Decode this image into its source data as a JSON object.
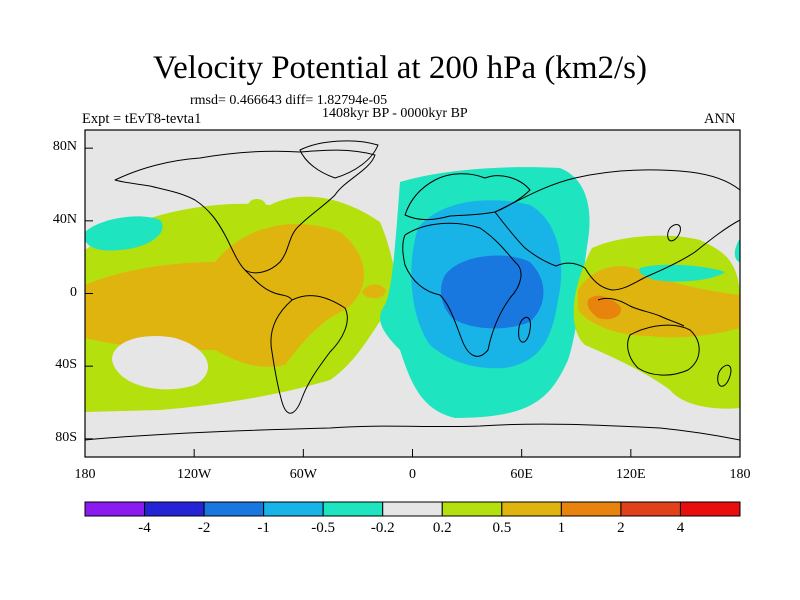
{
  "title": "Velocity Potential at 200 hPa (km2/s)",
  "stats_line": "rmsd= 0.466643 diff= 1.82794e-05",
  "period": "1408kyr BP - 0000kyr BP",
  "experiment": "Expt = tEvT8-tevta1",
  "season": "ANN",
  "map": {
    "projection": "cylindrical equidistant",
    "lon_range": [
      -180,
      180
    ],
    "lat_range": [
      -90,
      90
    ],
    "lat_ticks": [
      {
        "value": 80,
        "label": "80N"
      },
      {
        "value": 40,
        "label": "40N"
      },
      {
        "value": 0,
        "label": "0"
      },
      {
        "value": -40,
        "label": "40S"
      },
      {
        "value": -80,
        "label": "80S"
      }
    ],
    "lon_ticks": [
      {
        "value": -180,
        "label": "180"
      },
      {
        "value": -120,
        "label": "120W"
      },
      {
        "value": -60,
        "label": "60W"
      },
      {
        "value": 0,
        "label": "0"
      },
      {
        "value": 60,
        "label": "60E"
      },
      {
        "value": 120,
        "label": "120E"
      },
      {
        "value": 180,
        "label": "180"
      }
    ]
  },
  "colorbar": {
    "colors": [
      "#8a1cf0",
      "#2424d6",
      "#1878e0",
      "#18b4e8",
      "#1ee4c0",
      "#e6e6e6",
      "#b4e00e",
      "#e0b40e",
      "#e8840e",
      "#e0401a",
      "#e80e0e"
    ],
    "labels": [
      "-4",
      "-2",
      "-1",
      "-0.5",
      "-0.2",
      "0.2",
      "0.5",
      "1",
      "2",
      "4"
    ]
  }
}
